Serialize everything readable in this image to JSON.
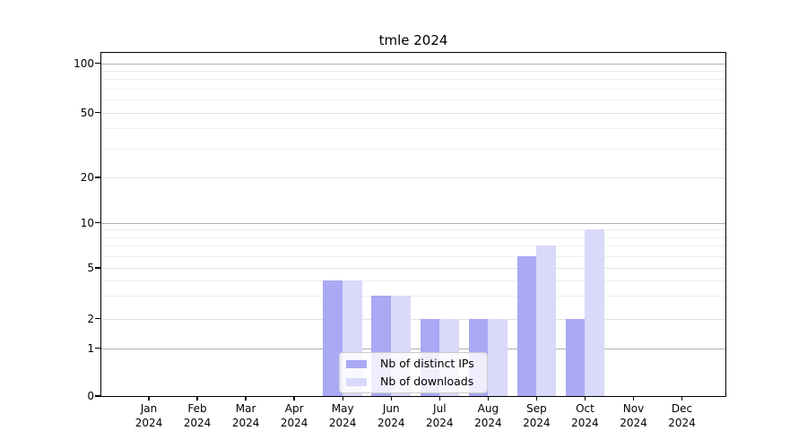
{
  "title": "tmle 2024",
  "chart_data": {
    "type": "bar",
    "categories": [
      "Jan",
      "Feb",
      "Mar",
      "Apr",
      "May",
      "Jun",
      "Jul",
      "Aug",
      "Sep",
      "Oct",
      "Nov",
      "Dec"
    ],
    "category_year": "2024",
    "series": [
      {
        "name": "Nb of distinct IPs",
        "color": "#a9a9f4",
        "values": [
          0,
          0,
          0,
          0,
          4,
          3,
          2,
          2,
          6,
          2,
          0,
          0
        ]
      },
      {
        "name": "Nb of downloads",
        "color": "#d9d9f9",
        "values": [
          0,
          0,
          0,
          0,
          4,
          3,
          2,
          2,
          7,
          9,
          0,
          0
        ]
      }
    ],
    "yscale": "log-like (0,1,2,5,10,20,50,100)",
    "yticks": [
      0,
      1,
      2,
      5,
      10,
      20,
      50,
      100
    ],
    "minor_gridlines": [
      3,
      4,
      6,
      7,
      8,
      9,
      30,
      40,
      60,
      70,
      80,
      90
    ],
    "ylim": [
      0,
      116
    ],
    "grid": true,
    "legend_position": "lower-center",
    "colors": {
      "grid_decade": "#b0b0b0",
      "grid_labeled": "#e2e2e2",
      "grid_minor": "#eeeeee",
      "axis": "#000000"
    }
  }
}
